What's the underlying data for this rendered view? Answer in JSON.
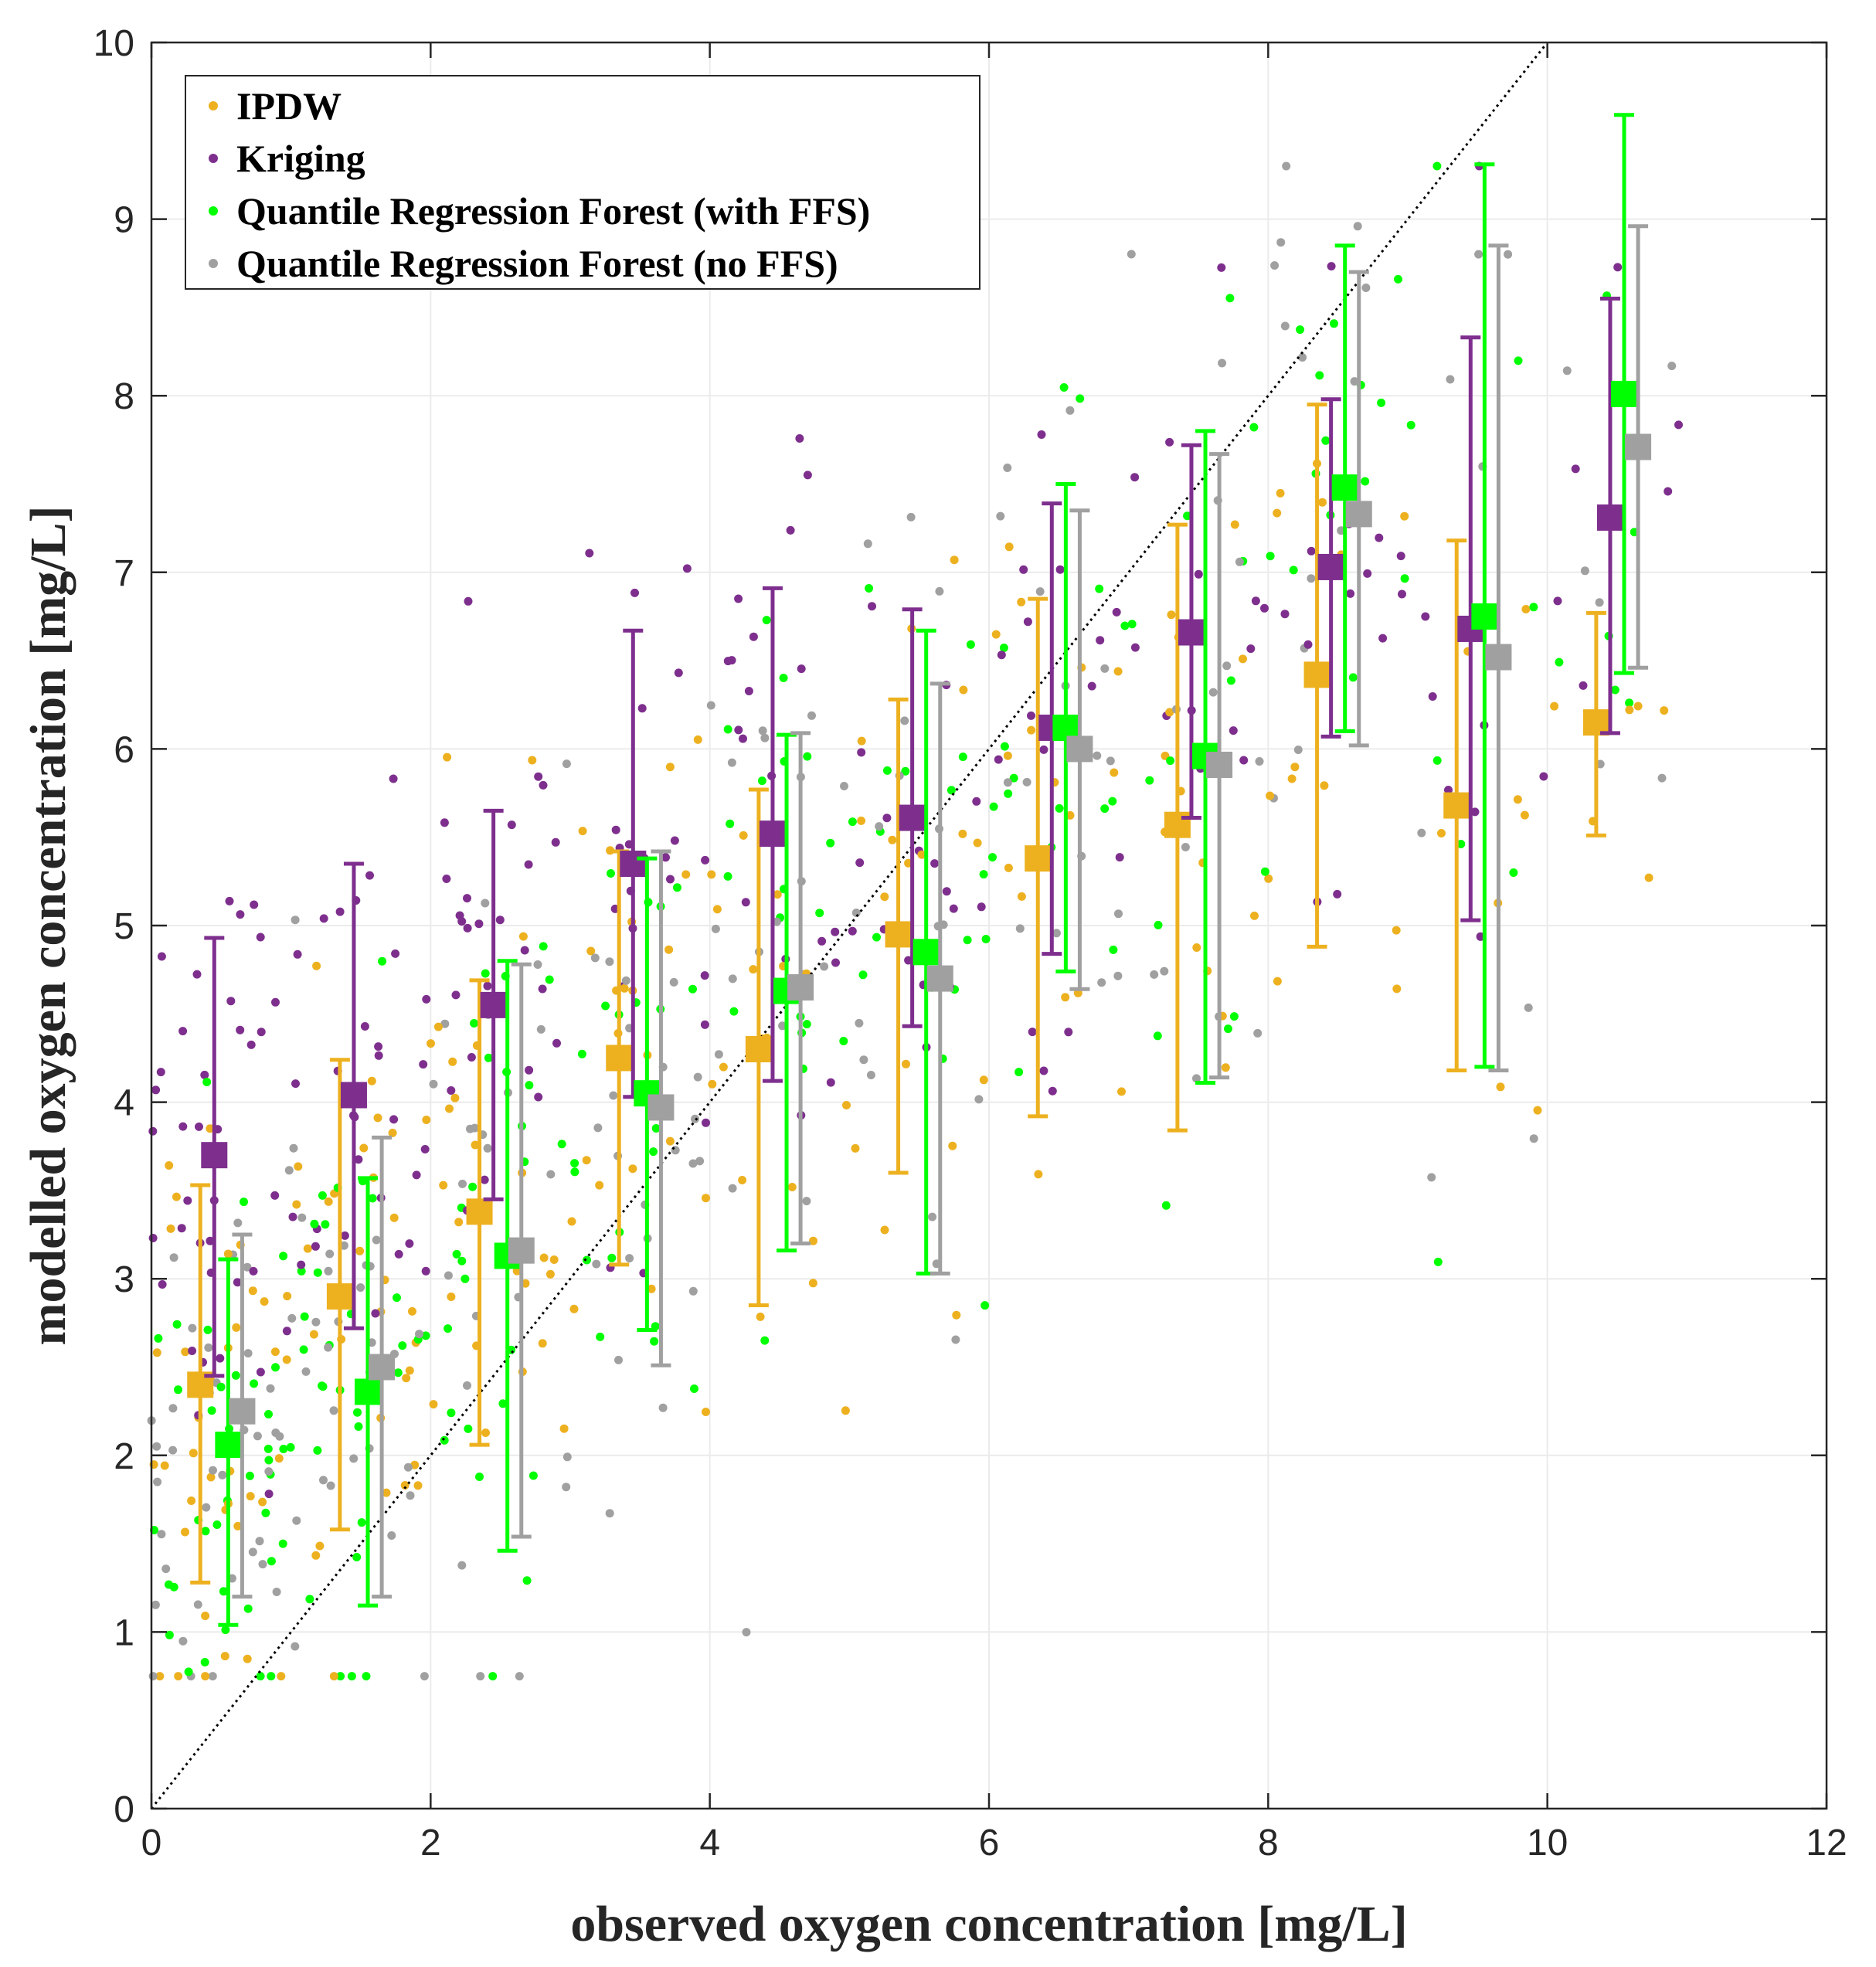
{
  "chart_data": {
    "type": "scatter",
    "title": "",
    "xlabel": "observed oxygen concentration [mg/L]",
    "ylabel": "modelled oxygen concentration [mg/L]",
    "xlim": [
      0,
      12
    ],
    "ylim": [
      0,
      10
    ],
    "xticks": [
      "0",
      "2",
      "4",
      "6",
      "8",
      "10",
      "12"
    ],
    "yticks": [
      "0",
      "1",
      "2",
      "3",
      "4",
      "5",
      "6",
      "7",
      "8",
      "9",
      "10"
    ],
    "grid": true,
    "legend_position": "top-left",
    "reference_line": {
      "name": "1:1 line",
      "x": [
        0,
        10
      ],
      "y": [
        0,
        10
      ],
      "style": "dotted"
    },
    "series": [
      {
        "name": "IPDW",
        "color": "#EDB120",
        "binned_summary": {
          "x": [
            0.35,
            1.35,
            2.35,
            3.35,
            4.35,
            5.35,
            6.35,
            7.35,
            8.35,
            9.35,
            10.35
          ],
          "median": [
            2.4,
            2.9,
            3.38,
            4.25,
            4.3,
            4.95,
            5.38,
            5.57,
            6.42,
            5.68,
            6.15
          ],
          "lower": [
            1.28,
            1.58,
            2.06,
            3.08,
            2.85,
            3.6,
            3.92,
            3.84,
            4.88,
            4.18,
            5.51
          ],
          "upper": [
            3.53,
            4.24,
            4.69,
            5.42,
            5.77,
            6.28,
            6.85,
            7.27,
            7.95,
            7.18,
            6.77
          ]
        }
      },
      {
        "name": "Kriging",
        "color": "#7E2F8E",
        "binned_summary": {
          "x": [
            0.45,
            1.45,
            2.45,
            3.45,
            4.45,
            5.45,
            6.45,
            7.45,
            8.45,
            9.45,
            10.45
          ],
          "median": [
            3.7,
            4.04,
            4.55,
            5.35,
            5.52,
            5.61,
            6.12,
            6.66,
            7.03,
            6.68,
            7.31
          ],
          "lower": [
            2.45,
            2.72,
            3.45,
            4.03,
            4.12,
            4.43,
            4.84,
            5.61,
            6.07,
            5.03,
            6.09
          ],
          "upper": [
            4.93,
            5.35,
            5.65,
            6.67,
            6.91,
            6.79,
            7.39,
            7.72,
            7.98,
            8.33,
            8.55
          ]
        }
      },
      {
        "name": "Quantile Regression Forest (with FFS)",
        "color": "#00FF00",
        "binned_summary": {
          "x": [
            0.55,
            1.55,
            2.55,
            3.55,
            4.55,
            5.55,
            6.55,
            7.55,
            8.55,
            9.55,
            10.55
          ],
          "median": [
            2.06,
            2.36,
            3.13,
            4.05,
            4.63,
            4.85,
            6.12,
            5.96,
            7.48,
            6.75,
            8.01
          ],
          "lower": [
            1.04,
            1.15,
            1.46,
            2.71,
            3.16,
            3.03,
            4.74,
            4.11,
            6.1,
            4.2,
            6.43
          ],
          "upper": [
            3.11,
            3.57,
            4.8,
            5.38,
            6.08,
            6.67,
            7.5,
            7.8,
            8.85,
            9.31,
            9.59
          ]
        }
      },
      {
        "name": "Quantile Regression Forest (no FFS)",
        "color": "#A0A0A0",
        "binned_summary": {
          "x": [
            0.65,
            1.65,
            2.65,
            3.65,
            4.65,
            5.65,
            6.65,
            7.65,
            8.65,
            9.65,
            10.65
          ],
          "median": [
            2.25,
            2.5,
            3.16,
            3.97,
            4.65,
            4.7,
            6.0,
            5.91,
            7.33,
            6.52,
            7.71
          ],
          "lower": [
            1.2,
            1.2,
            1.54,
            2.51,
            3.2,
            3.03,
            4.64,
            4.14,
            6.02,
            4.18,
            6.46
          ],
          "upper": [
            3.25,
            3.8,
            4.78,
            5.42,
            6.09,
            6.37,
            7.35,
            7.67,
            8.7,
            8.85,
            8.96
          ]
        }
      }
    ]
  }
}
